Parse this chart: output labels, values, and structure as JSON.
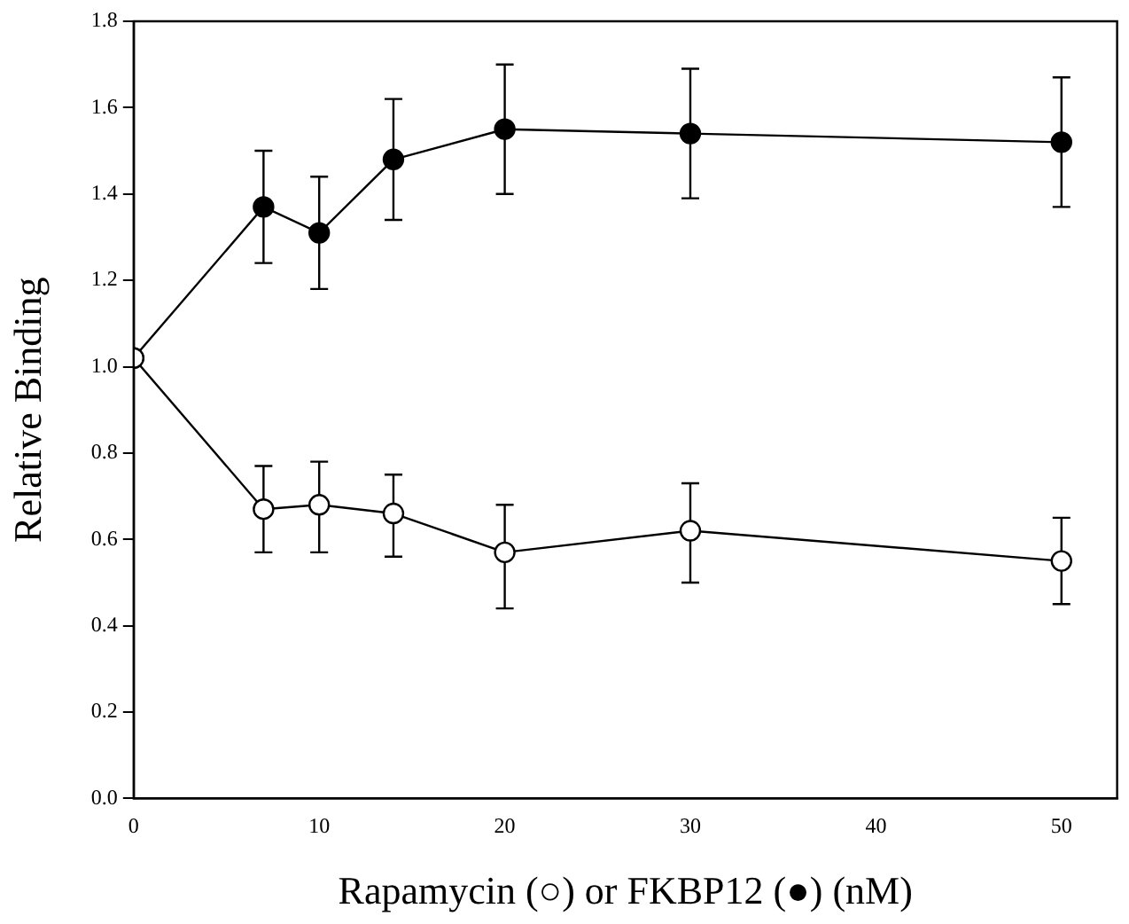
{
  "chart_data": {
    "type": "line",
    "xlabel": "Rapamycin (○) or FKBP12 (●) (nM)",
    "ylabel": "Relative Binding",
    "xlim": [
      0,
      53
    ],
    "ylim": [
      0,
      1.8
    ],
    "xticks": [
      0,
      10,
      20,
      30,
      40,
      50
    ],
    "yticks": [
      {
        "value": 0,
        "label": "0.0"
      },
      {
        "value": 0.2,
        "label": "0.2"
      },
      {
        "value": 0.4,
        "label": "0.4"
      },
      {
        "value": 0.6,
        "label": "0.6"
      },
      {
        "value": 0.8,
        "label": "0.8"
      },
      {
        "value": 1,
        "label": "1.0"
      },
      {
        "value": 1.2,
        "label": "1.2"
      },
      {
        "value": 1.4,
        "label": "1.4"
      },
      {
        "value": 1.6,
        "label": "1.6"
      },
      {
        "value": 1.8,
        "label": "1.8"
      }
    ],
    "grid": false,
    "legend": false,
    "marker": "circle",
    "line_style": "solid",
    "series": [
      {
        "color": "#000000",
        "x": [
          0,
          7,
          10,
          14,
          20,
          30,
          50
        ],
        "values": [
          1.02,
          1.37,
          1.31,
          1.48,
          1.55,
          1.54,
          1.52
        ],
        "errors": [
          null,
          [
            1.24,
            1.5
          ],
          [
            1.18,
            1.44
          ],
          [
            1.34,
            1.62
          ],
          [
            1.4,
            1.7
          ],
          [
            1.39,
            1.69
          ],
          [
            1.37,
            1.67
          ]
        ]
      },
      {
        "color": "#000000",
        "x": [
          0,
          7,
          10,
          14,
          20,
          30,
          50
        ],
        "values": [
          1.02,
          0.67,
          0.68,
          0.66,
          0.57,
          0.62,
          0.55
        ],
        "errors": [
          null,
          [
            0.57,
            0.77
          ],
          [
            0.57,
            0.78
          ],
          [
            0.56,
            0.75
          ],
          [
            0.44,
            0.68
          ],
          [
            0.5,
            0.73
          ],
          [
            0.45,
            0.65
          ]
        ]
      }
    ]
  }
}
